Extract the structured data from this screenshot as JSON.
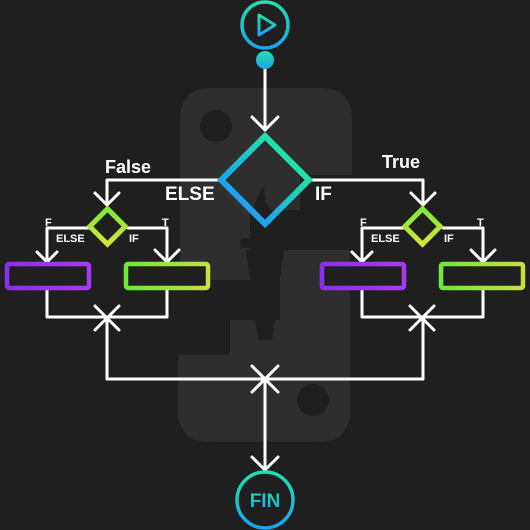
{
  "diagram": {
    "labels": {
      "top_false": "False",
      "top_true": "True",
      "top_else": "ELSE",
      "top_if": "IF",
      "left_f": "F",
      "left_t": "T",
      "left_else": "ELSE",
      "left_if": "IF",
      "right_f": "F",
      "right_t": "T",
      "right_else": "ELSE",
      "right_if": "IF",
      "end": "FIN"
    },
    "icons": {
      "start": "play-icon",
      "background": "python-logo-watermark"
    },
    "colors": {
      "background": "#1f1f1f",
      "connector": "#ffffff",
      "teal": "#22d6b0",
      "blue": "#1ea7e8",
      "lime": "#b6e635",
      "green": "#7ee83a",
      "purple": "#9b2ff0"
    }
  }
}
